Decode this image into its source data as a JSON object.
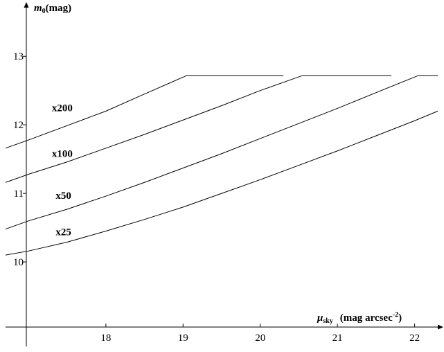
{
  "chart_data": {
    "type": "line",
    "xlabel": {
      "symbol": "μ",
      "sub": "sky",
      "unit": "(mag arcsec",
      "sup": "-2",
      "close": ")"
    },
    "ylabel": {
      "symbol": "m",
      "sub": "0",
      "unit": "(mag)"
    },
    "xlim": [
      16.7,
      22.3
    ],
    "ylim": [
      9.05,
      13.7
    ],
    "x_ticks": [
      18,
      19,
      20,
      21,
      22
    ],
    "y_ticks": [
      10,
      11,
      12,
      13
    ],
    "grid": false,
    "series": [
      {
        "name": "x200",
        "label_at": [
          17.3,
          12.2
        ],
        "points": [
          [
            16.7,
            11.66
          ],
          [
            17.0,
            11.78
          ],
          [
            17.5,
            11.99
          ],
          [
            18.0,
            12.2
          ],
          [
            18.5,
            12.45
          ],
          [
            19.05,
            12.72
          ],
          [
            20.3,
            12.72
          ]
        ]
      },
      {
        "name": "x100",
        "label_at": [
          17.3,
          11.53
        ],
        "points": [
          [
            16.7,
            11.16
          ],
          [
            17.0,
            11.28
          ],
          [
            17.5,
            11.46
          ],
          [
            18.0,
            11.66
          ],
          [
            18.5,
            11.86
          ],
          [
            19.0,
            12.07
          ],
          [
            19.5,
            12.28
          ],
          [
            20.0,
            12.5
          ],
          [
            20.55,
            12.72
          ],
          [
            21.7,
            12.72
          ]
        ]
      },
      {
        "name": "x50",
        "label_at": [
          17.35,
          10.92
        ],
        "points": [
          [
            16.7,
            10.48
          ],
          [
            17.0,
            10.6
          ],
          [
            17.5,
            10.77
          ],
          [
            18.0,
            10.96
          ],
          [
            18.5,
            11.16
          ],
          [
            19.0,
            11.37
          ],
          [
            19.5,
            11.58
          ],
          [
            20.0,
            11.8
          ],
          [
            20.5,
            12.02
          ],
          [
            21.0,
            12.24
          ],
          [
            21.5,
            12.47
          ],
          [
            22.05,
            12.72
          ],
          [
            22.3,
            12.72
          ]
        ]
      },
      {
        "name": "x25",
        "label_at": [
          17.35,
          10.39
        ],
        "points": [
          [
            16.7,
            10.1
          ],
          [
            17.0,
            10.16
          ],
          [
            17.5,
            10.29
          ],
          [
            18.0,
            10.45
          ],
          [
            18.5,
            10.62
          ],
          [
            19.0,
            10.8
          ],
          [
            19.5,
            11.0
          ],
          [
            20.0,
            11.2
          ],
          [
            20.5,
            11.41
          ],
          [
            21.0,
            11.62
          ],
          [
            21.5,
            11.84
          ],
          [
            22.0,
            12.06
          ],
          [
            22.3,
            12.2
          ]
        ]
      }
    ]
  }
}
